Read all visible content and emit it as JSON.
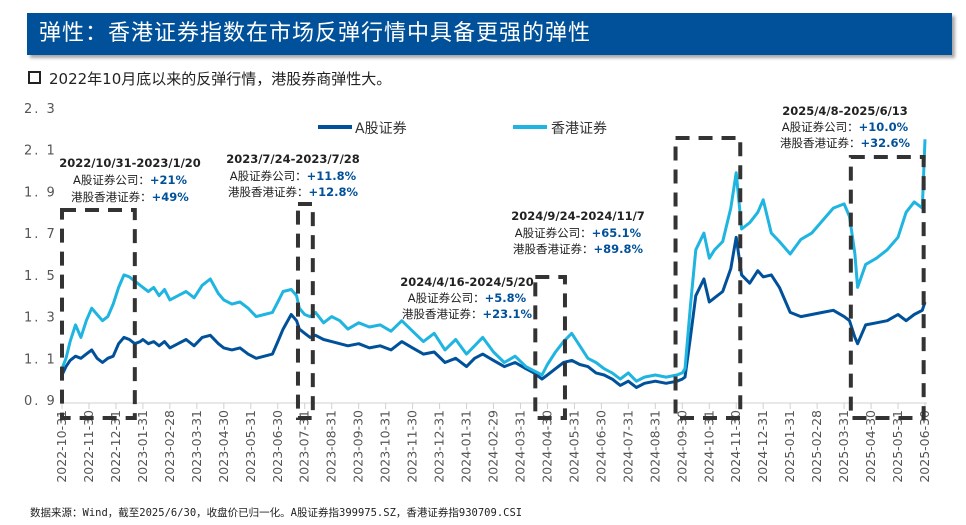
{
  "header": {
    "title": "弹性：香港证券指数在市场反弹行情中具备更强的弹性",
    "subtitle": "2022年10月底以来的反弹行情，港股券商弹性大。"
  },
  "footer": {
    "source": "数据来源：Wind，截至2025/6/30，收盘价已归一化。A股证券指399975.SZ，香港证券指930709.CSI"
  },
  "colors": {
    "title_bg": "#00519A",
    "a_share": "#00519A",
    "hk": "#1FB5E0",
    "box": "#333333"
  },
  "chart_data": {
    "type": "line",
    "title": "",
    "xlabel": "",
    "ylabel": "",
    "ylim": [
      0.9,
      2.3
    ],
    "yticks": [
      "0.9",
      "1.1",
      "1.3",
      "1.5",
      "1.7",
      "1.9",
      "2.1",
      "2.3"
    ],
    "grid": false,
    "legend_position": "top-center",
    "x_tick_labels": [
      "2022-10-31",
      "2022-11-30",
      "2022-12-31",
      "2023-01-31",
      "2023-02-28",
      "2023-03-31",
      "2023-04-30",
      "2023-05-31",
      "2023-06-30",
      "2023-07-31",
      "2023-08-31",
      "2023-09-30",
      "2023-10-31",
      "2023-11-30",
      "2023-12-31",
      "2024-01-31",
      "2024-02-29",
      "2024-03-31",
      "2024-04-30",
      "2024-05-31",
      "2024-06-30",
      "2024-07-31",
      "2024-08-31",
      "2024-09-30",
      "2024-10-31",
      "2024-11-30",
      "2024-12-31",
      "2025-01-31",
      "2025-02-28",
      "2025-03-31",
      "2025-04-30",
      "2025-05-31",
      "2025-06-30"
    ],
    "x_month_index_note": "x values are months elapsed since 2022-10-31",
    "series": [
      {
        "name": "A股证券",
        "color": "#00519A",
        "x": [
          0,
          0.15,
          0.3,
          0.5,
          0.7,
          0.9,
          1.1,
          1.3,
          1.5,
          1.7,
          1.9,
          2.1,
          2.3,
          2.5,
          2.7,
          2.9,
          3.0,
          3.2,
          3.4,
          3.6,
          3.8,
          4.0,
          4.3,
          4.6,
          4.9,
          5.2,
          5.5,
          5.8,
          6.0,
          6.3,
          6.6,
          6.9,
          7.2,
          7.5,
          7.8,
          8.0,
          8.2,
          8.5,
          8.7,
          8.8,
          9.0,
          9.2,
          9.4,
          9.7,
          10.0,
          10.3,
          10.6,
          11.0,
          11.4,
          11.8,
          12.2,
          12.6,
          13.0,
          13.4,
          13.8,
          14.2,
          14.6,
          15.0,
          15.3,
          15.6,
          16.0,
          16.4,
          16.8,
          17.2,
          17.5,
          17.8,
          18.0,
          18.3,
          18.6,
          18.9,
          19.2,
          19.5,
          19.8,
          20.1,
          20.4,
          20.7,
          21.0,
          21.3,
          21.6,
          22.0,
          22.4,
          22.8,
          23.0,
          23.1,
          23.3,
          23.5,
          23.8,
          24.0,
          24.2,
          24.5,
          24.8,
          25.0,
          25.2,
          25.5,
          25.8,
          26.0,
          26.3,
          26.6,
          27.0,
          27.4,
          27.8,
          28.2,
          28.6,
          29.0,
          29.2,
          29.4,
          29.5,
          29.8,
          30.2,
          30.6,
          31.0,
          31.3,
          31.6,
          31.9,
          32.0
        ],
        "y": [
          1.02,
          1.06,
          1.09,
          1.11,
          1.1,
          1.12,
          1.14,
          1.1,
          1.08,
          1.1,
          1.11,
          1.17,
          1.2,
          1.19,
          1.17,
          1.18,
          1.19,
          1.17,
          1.18,
          1.16,
          1.18,
          1.15,
          1.17,
          1.19,
          1.16,
          1.2,
          1.21,
          1.17,
          1.15,
          1.14,
          1.15,
          1.12,
          1.1,
          1.11,
          1.12,
          1.18,
          1.24,
          1.31,
          1.28,
          1.24,
          1.22,
          1.2,
          1.21,
          1.19,
          1.18,
          1.17,
          1.16,
          1.17,
          1.15,
          1.16,
          1.14,
          1.18,
          1.15,
          1.12,
          1.13,
          1.08,
          1.1,
          1.06,
          1.1,
          1.12,
          1.09,
          1.06,
          1.08,
          1.05,
          1.03,
          1.0,
          1.02,
          1.05,
          1.08,
          1.09,
          1.07,
          1.06,
          1.03,
          1.02,
          1.0,
          0.97,
          0.99,
          0.96,
          0.98,
          0.99,
          0.98,
          0.99,
          1.0,
          1.01,
          1.2,
          1.4,
          1.48,
          1.37,
          1.39,
          1.42,
          1.53,
          1.68,
          1.5,
          1.46,
          1.52,
          1.49,
          1.5,
          1.44,
          1.32,
          1.3,
          1.31,
          1.32,
          1.33,
          1.3,
          1.28,
          1.2,
          1.17,
          1.26,
          1.27,
          1.28,
          1.31,
          1.28,
          1.31,
          1.33,
          1.37
        ]
      },
      {
        "name": "香港证券",
        "color": "#1FB5E0",
        "x": [
          0,
          0.15,
          0.3,
          0.5,
          0.7,
          0.9,
          1.1,
          1.3,
          1.5,
          1.7,
          1.9,
          2.1,
          2.3,
          2.5,
          2.7,
          2.9,
          3.0,
          3.2,
          3.4,
          3.6,
          3.8,
          4.0,
          4.3,
          4.6,
          4.9,
          5.2,
          5.5,
          5.8,
          6.0,
          6.3,
          6.6,
          6.9,
          7.2,
          7.5,
          7.8,
          8.0,
          8.2,
          8.5,
          8.7,
          8.8,
          9.0,
          9.2,
          9.4,
          9.7,
          10.0,
          10.3,
          10.6,
          11.0,
          11.4,
          11.8,
          12.2,
          12.6,
          13.0,
          13.4,
          13.8,
          14.2,
          14.6,
          15.0,
          15.3,
          15.6,
          16.0,
          16.4,
          16.8,
          17.2,
          17.5,
          17.8,
          18.0,
          18.3,
          18.6,
          18.9,
          19.2,
          19.5,
          19.8,
          20.1,
          20.4,
          20.7,
          21.0,
          21.3,
          21.6,
          22.0,
          22.4,
          22.8,
          23.0,
          23.1,
          23.3,
          23.5,
          23.8,
          24.0,
          24.2,
          24.5,
          24.8,
          25.0,
          25.2,
          25.5,
          25.8,
          26.0,
          26.3,
          26.6,
          27.0,
          27.4,
          27.8,
          28.2,
          28.6,
          29.0,
          29.2,
          29.4,
          29.5,
          29.8,
          30.2,
          30.6,
          31.0,
          31.3,
          31.6,
          31.9,
          32.0
        ],
        "y": [
          1.05,
          1.1,
          1.18,
          1.26,
          1.2,
          1.28,
          1.34,
          1.31,
          1.28,
          1.3,
          1.36,
          1.44,
          1.5,
          1.49,
          1.47,
          1.45,
          1.44,
          1.42,
          1.44,
          1.4,
          1.43,
          1.38,
          1.4,
          1.42,
          1.39,
          1.45,
          1.48,
          1.41,
          1.38,
          1.36,
          1.37,
          1.34,
          1.3,
          1.31,
          1.32,
          1.37,
          1.42,
          1.43,
          1.4,
          1.34,
          1.31,
          1.3,
          1.32,
          1.27,
          1.3,
          1.28,
          1.24,
          1.27,
          1.25,
          1.26,
          1.23,
          1.28,
          1.23,
          1.18,
          1.22,
          1.14,
          1.19,
          1.12,
          1.16,
          1.2,
          1.13,
          1.08,
          1.11,
          1.06,
          1.04,
          1.02,
          1.07,
          1.13,
          1.18,
          1.22,
          1.16,
          1.1,
          1.08,
          1.05,
          1.03,
          1.0,
          1.03,
          0.99,
          1.01,
          1.02,
          1.01,
          1.02,
          1.03,
          1.05,
          1.35,
          1.62,
          1.7,
          1.58,
          1.62,
          1.66,
          1.82,
          1.99,
          1.72,
          1.75,
          1.8,
          1.86,
          1.7,
          1.66,
          1.6,
          1.67,
          1.7,
          1.76,
          1.82,
          1.84,
          1.78,
          1.6,
          1.44,
          1.55,
          1.58,
          1.62,
          1.68,
          1.8,
          1.85,
          1.82,
          2.15
        ]
      }
    ],
    "annotations": [
      {
        "period": "2022/10/31-2023/1/20",
        "a_label": "A股证券公司：",
        "a_value": "+21%",
        "hk_label": "港股香港证券：",
        "hk_value": "+49%",
        "box_x": [
          0,
          2.7
        ]
      },
      {
        "period": "2023/7/24-2023/7/28",
        "a_label": "A股证券公司：",
        "a_value": "+11.8%",
        "hk_label": "港股香港证券：",
        "hk_value": "+12.8%",
        "box_x": [
          8.75,
          9.3
        ]
      },
      {
        "period": "2024/4/16-2024/5/20",
        "a_label": "A股证券公司：",
        "a_value": "+5.8%",
        "hk_label": "港股香港证券：",
        "hk_value": "+23.1%",
        "box_x": [
          17.55,
          18.65
        ]
      },
      {
        "period": "2024/9/24-2024/11/7",
        "a_label": "A股证券公司：",
        "a_value": "+65.1%",
        "hk_label": "港股香港证券：",
        "hk_value": "+89.8%",
        "box_x": [
          22.75,
          25.15
        ]
      },
      {
        "period": "2025/4/8-2025/6/13",
        "a_label": "A股证券公司：",
        "a_value": "+10.0%",
        "hk_label": "港股香港证券：",
        "hk_value": "+32.6%",
        "box_x": [
          29.25,
          31.95
        ]
      }
    ]
  }
}
